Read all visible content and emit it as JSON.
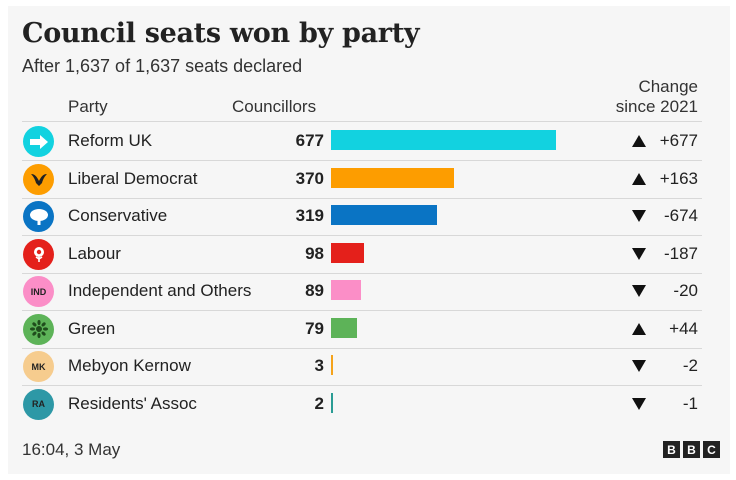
{
  "title": "Council seats won by party",
  "subtitle": "After 1,637 of 1,637 seats declared",
  "headers": {
    "party": "Party",
    "councillors": "Councillors",
    "change_line1": "Change",
    "change_line2": "since 2021"
  },
  "timestamp": "16:04,  3 May",
  "brand": [
    "B",
    "B",
    "C"
  ],
  "chart_data": {
    "type": "bar",
    "title": "Council seats won by party",
    "subtitle": "After 1,637 of 1,637 seats declared",
    "categories": [
      "Reform UK",
      "Liberal Democrat",
      "Conservative",
      "Labour",
      "Independent and Others",
      "Green",
      "Mebyon Kernow",
      "Residents' Assoc"
    ],
    "values": [
      677,
      370,
      319,
      98,
      89,
      79,
      3,
      2
    ],
    "change_labels": [
      "+677",
      "+163",
      "-674",
      "-187",
      "-20",
      "+44",
      "-2",
      "-1"
    ],
    "change_values": [
      677,
      163,
      -674,
      -187,
      -20,
      44,
      -2,
      -1
    ],
    "colors": [
      "#12d2e0",
      "#fd9d00",
      "#0a74c4",
      "#e4201b",
      "#fb8ec7",
      "#5db358",
      "#f5a31b",
      "#2a9c94"
    ],
    "logo_colors": [
      "#12d2e0",
      "#fd9d00",
      "#0a74c4",
      "#e4201b",
      "#fb8ec7",
      "#5db358",
      "#f6cc8e",
      "#2d98a6"
    ],
    "logo_icons": [
      "arrow-icon",
      "bird-icon",
      "tree-icon",
      "rose-icon",
      "ind-badge",
      "sunflower-icon",
      "mk-badge",
      "ra-badge"
    ],
    "logo_text": [
      "",
      "",
      "",
      "",
      "IND",
      "",
      "MK",
      "RA"
    ],
    "value_axis_max": 677
  }
}
